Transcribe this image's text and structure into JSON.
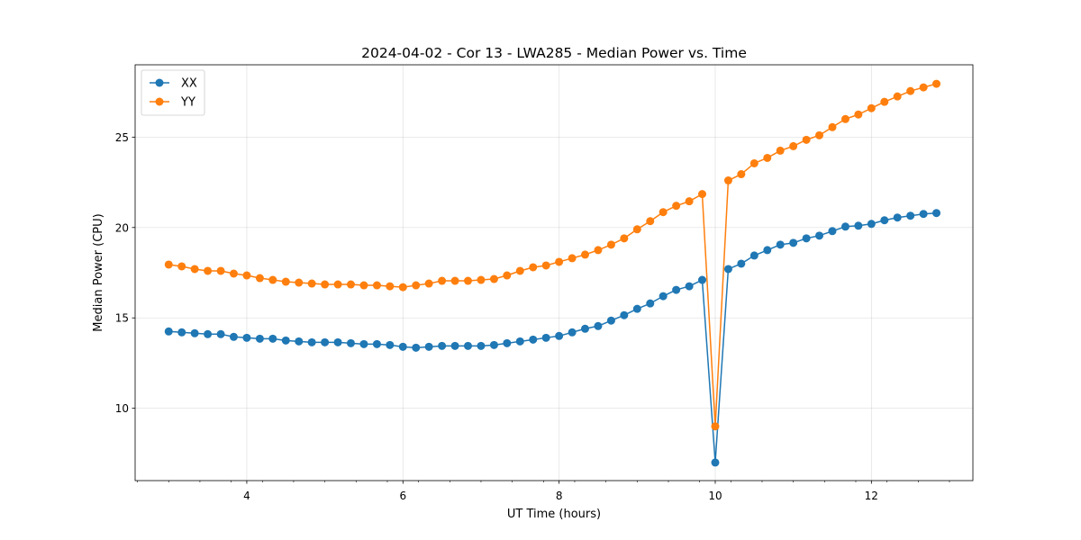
{
  "chart_data": {
    "type": "line",
    "title": "2024-04-02 - Cor 13 - LWA285 - Median Power vs. Time",
    "xlabel": "UT Time (hours)",
    "ylabel": "Median Power (CPU)",
    "xlim": [
      2.57,
      13.3
    ],
    "ylim": [
      6.0,
      29.0
    ],
    "xticks": [
      4,
      6,
      8,
      10,
      12
    ],
    "xtick_labels": [
      "4",
      "6",
      "8",
      "10",
      "12"
    ],
    "yticks": [
      10,
      15,
      20,
      25
    ],
    "ytick_labels": [
      "10",
      "15",
      "20",
      "25"
    ],
    "grid": true,
    "legend_position": "top-left",
    "x": [
      3.0,
      3.167,
      3.333,
      3.5,
      3.667,
      3.833,
      4.0,
      4.167,
      4.333,
      4.5,
      4.667,
      4.833,
      5.0,
      5.167,
      5.333,
      5.5,
      5.667,
      5.833,
      6.0,
      6.167,
      6.333,
      6.5,
      6.667,
      6.833,
      7.0,
      7.167,
      7.333,
      7.5,
      7.667,
      7.833,
      8.0,
      8.167,
      8.333,
      8.5,
      8.667,
      8.833,
      9.0,
      9.167,
      9.333,
      9.5,
      9.667,
      9.833,
      10.0,
      10.167,
      10.333,
      10.5,
      10.667,
      10.833,
      11.0,
      11.167,
      11.333,
      11.5,
      11.667,
      11.833,
      12.0,
      12.167,
      12.333,
      12.5,
      12.667,
      12.833
    ],
    "series": [
      {
        "name": "XX",
        "color": "#1f77b4",
        "values": [
          14.25,
          14.2,
          14.15,
          14.1,
          14.1,
          13.95,
          13.9,
          13.85,
          13.85,
          13.75,
          13.7,
          13.65,
          13.65,
          13.65,
          13.6,
          13.55,
          13.55,
          13.5,
          13.4,
          13.35,
          13.4,
          13.45,
          13.45,
          13.45,
          13.45,
          13.5,
          13.6,
          13.7,
          13.8,
          13.9,
          14.0,
          14.2,
          14.4,
          14.55,
          14.85,
          15.15,
          15.5,
          15.8,
          16.2,
          16.55,
          16.75,
          17.1,
          7.0,
          17.7,
          18.0,
          18.45,
          18.75,
          19.05,
          19.15,
          19.4,
          19.55,
          19.8,
          20.05,
          20.1,
          20.2,
          20.4,
          20.55,
          20.65,
          20.75,
          20.8
        ]
      },
      {
        "name": "YY",
        "color": "#ff7f0e",
        "values": [
          17.95,
          17.85,
          17.7,
          17.6,
          17.6,
          17.45,
          17.35,
          17.2,
          17.1,
          17.0,
          16.95,
          16.9,
          16.85,
          16.85,
          16.85,
          16.8,
          16.8,
          16.75,
          16.7,
          16.8,
          16.9,
          17.05,
          17.05,
          17.05,
          17.1,
          17.15,
          17.35,
          17.6,
          17.8,
          17.9,
          18.1,
          18.3,
          18.5,
          18.75,
          19.05,
          19.4,
          19.9,
          20.35,
          20.85,
          21.2,
          21.45,
          21.85,
          9.0,
          22.6,
          22.95,
          23.55,
          23.85,
          24.25,
          24.5,
          24.85,
          25.1,
          25.55,
          26.0,
          26.25,
          26.6,
          26.95,
          27.25,
          27.55,
          27.75,
          27.95
        ]
      }
    ]
  }
}
